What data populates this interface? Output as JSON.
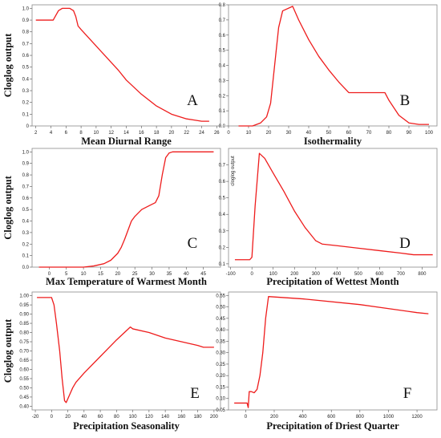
{
  "chart_data": [
    {
      "panel": "A",
      "type": "line",
      "xlabel": "Mean Diurnal Range",
      "ylabel": "Cloglog output",
      "xlim": [
        1.5,
        26.5
      ],
      "ylim": [
        0,
        1.03
      ],
      "xticks": [
        2,
        4,
        6,
        8,
        10,
        12,
        14,
        16,
        18,
        20,
        22,
        24,
        26
      ],
      "yticks": [
        0,
        0.1,
        0.2,
        0.3,
        0.4,
        0.5,
        0.6,
        0.7,
        0.8,
        0.9,
        1.0
      ],
      "ytick_labels": [
        "0",
        "0.1",
        "0.2",
        "0.3",
        "0.4",
        "0.5",
        "0.6",
        "0.7",
        "0.8",
        "0.9",
        "1.0"
      ],
      "series": [
        {
          "color": "#ee1c1c",
          "x": [
            2,
            4.3,
            5,
            5.5,
            6.5,
            7,
            7.3,
            7.6,
            8,
            9,
            10,
            11,
            12,
            13,
            14,
            16,
            18,
            20,
            22,
            23,
            24,
            25
          ],
          "y": [
            0.9,
            0.9,
            0.98,
            1.0,
            1.0,
            0.98,
            0.93,
            0.85,
            0.82,
            0.75,
            0.68,
            0.61,
            0.54,
            0.47,
            0.39,
            0.27,
            0.17,
            0.1,
            0.06,
            0.05,
            0.04,
            0.04
          ]
        }
      ]
    },
    {
      "panel": "B",
      "type": "line",
      "xlabel": "Isothermality",
      "ylabel": "",
      "xlim": [
        0,
        104
      ],
      "ylim": [
        0,
        0.8
      ],
      "xticks": [
        0,
        10,
        20,
        30,
        40,
        50,
        60,
        70,
        80,
        90,
        100
      ],
      "yticks": [
        0,
        0.1,
        0.2,
        0.3,
        0.4,
        0.5,
        0.6,
        0.7,
        0.8
      ],
      "ytick_labels": [
        "0.0",
        "0.1",
        "0.2",
        "0.3",
        "0.4",
        "0.5",
        "0.6",
        "0.7",
        "0.8"
      ],
      "series": [
        {
          "color": "#ee1c1c",
          "x": [
            5,
            12,
            16,
            19,
            21,
            23,
            25,
            27,
            32,
            35,
            40,
            45,
            50,
            55,
            60,
            65,
            70,
            75,
            78,
            80,
            85,
            90,
            95,
            100
          ],
          "y": [
            0.0,
            0.0,
            0.02,
            0.06,
            0.15,
            0.4,
            0.65,
            0.76,
            0.79,
            0.7,
            0.57,
            0.46,
            0.37,
            0.29,
            0.22,
            0.22,
            0.22,
            0.22,
            0.22,
            0.17,
            0.07,
            0.02,
            0.01,
            0.01
          ]
        }
      ]
    },
    {
      "panel": "C",
      "type": "line",
      "xlabel": "Max Temperature of Warmest Month",
      "ylabel": "Cloglog output",
      "xlim": [
        -5,
        50
      ],
      "ylim": [
        0,
        1.03
      ],
      "xticks": [
        0,
        5,
        10,
        15,
        20,
        25,
        30,
        35,
        40,
        45
      ],
      "yticks": [
        0,
        0.1,
        0.2,
        0.3,
        0.4,
        0.5,
        0.6,
        0.7,
        0.8,
        0.9,
        1.0
      ],
      "ytick_labels": [
        "0.0",
        "0.1",
        "0.2",
        "0.3",
        "0.4",
        "0.5",
        "0.6",
        "0.7",
        "0.8",
        "0.9",
        "1.0"
      ],
      "series": [
        {
          "color": "#ee1c1c",
          "x": [
            -3,
            5,
            10,
            13,
            16,
            18,
            20,
            21,
            22,
            23,
            24,
            25,
            27,
            29,
            31,
            32,
            33,
            34,
            35,
            36,
            40,
            45,
            48
          ],
          "y": [
            0.0,
            0.0,
            0.0,
            0.01,
            0.03,
            0.06,
            0.12,
            0.17,
            0.24,
            0.32,
            0.4,
            0.44,
            0.5,
            0.53,
            0.56,
            0.62,
            0.8,
            0.95,
            0.99,
            1.0,
            1.0,
            1.0,
            1.0
          ]
        }
      ]
    },
    {
      "panel": "D",
      "type": "line",
      "xlabel": "Precipitation of Wettest Month",
      "ylabel": "cloglog output",
      "xlim": [
        -110,
        870
      ],
      "ylim": [
        0.08,
        0.8
      ],
      "xticks": [
        -100,
        0,
        100,
        200,
        300,
        400,
        500,
        600,
        700,
        800
      ],
      "yticks": [
        0.1,
        0.2,
        0.3,
        0.4,
        0.5,
        0.6,
        0.7
      ],
      "ytick_labels": [
        "0.1",
        "0.2",
        "0.3",
        "0.4",
        "0.5",
        "0.6",
        "0.7"
      ],
      "series": [
        {
          "color": "#ee1c1c",
          "x": [
            -80,
            -10,
            0,
            15,
            35,
            60,
            100,
            150,
            200,
            250,
            300,
            330,
            400,
            500,
            600,
            700,
            760,
            800,
            850
          ],
          "y": [
            0.125,
            0.125,
            0.14,
            0.45,
            0.77,
            0.74,
            0.65,
            0.54,
            0.42,
            0.32,
            0.24,
            0.22,
            0.21,
            0.195,
            0.18,
            0.165,
            0.155,
            0.155,
            0.155
          ]
        }
      ]
    },
    {
      "panel": "E",
      "type": "line",
      "xlabel": "Precipitation Seasonality",
      "ylabel": "Cloglog output",
      "xlim": [
        -24,
        208
      ],
      "ylim": [
        0.38,
        1.02
      ],
      "xticks": [
        -20,
        0,
        20,
        40,
        60,
        80,
        100,
        120,
        140,
        160,
        180,
        200
      ],
      "yticks": [
        0.4,
        0.45,
        0.5,
        0.55,
        0.6,
        0.65,
        0.7,
        0.75,
        0.8,
        0.85,
        0.9,
        0.95,
        1.0
      ],
      "ytick_labels": [
        "0.40",
        "0.45",
        "0.50",
        "0.55",
        "0.60",
        "0.65",
        "0.70",
        "0.75",
        "0.80",
        "0.85",
        "0.90",
        "0.95",
        "1.00"
      ],
      "series": [
        {
          "color": "#ee1c1c",
          "x": [
            -18,
            0,
            3,
            6,
            10,
            13,
            16,
            18,
            22,
            26,
            30,
            40,
            60,
            80,
            97,
            100,
            120,
            140,
            160,
            180,
            187,
            200
          ],
          "y": [
            0.99,
            0.99,
            0.95,
            0.85,
            0.7,
            0.55,
            0.43,
            0.42,
            0.46,
            0.5,
            0.53,
            0.58,
            0.67,
            0.76,
            0.83,
            0.82,
            0.8,
            0.77,
            0.75,
            0.73,
            0.72,
            0.72
          ]
        }
      ]
    },
    {
      "panel": "F",
      "type": "line",
      "xlabel": "Precipitation of Driest Quarter",
      "ylabel": "",
      "xlim": [
        -120,
        1340
      ],
      "ylim": [
        0.05,
        0.565
      ],
      "xticks": [
        0,
        200,
        400,
        600,
        800,
        1000,
        1200
      ],
      "yticks": [
        0.05,
        0.1,
        0.15,
        0.2,
        0.25,
        0.3,
        0.35,
        0.4,
        0.45,
        0.5,
        0.55
      ],
      "ytick_labels": [
        "0.05",
        "0.10",
        "0.15",
        "0.20",
        "0.25",
        "0.30",
        "0.35",
        "0.40",
        "0.45",
        "0.50",
        "0.55"
      ],
      "series": [
        {
          "color": "#ee1c1c",
          "x": [
            -80,
            0,
            10,
            18,
            25,
            40,
            60,
            80,
            100,
            120,
            140,
            160,
            400,
            800,
            1200,
            1280
          ],
          "y": [
            0.08,
            0.08,
            0.08,
            0.06,
            0.13,
            0.13,
            0.125,
            0.14,
            0.2,
            0.3,
            0.45,
            0.545,
            0.535,
            0.51,
            0.475,
            0.47
          ]
        }
      ]
    }
  ],
  "panel_letters": [
    "A",
    "B",
    "C",
    "D",
    "E",
    "F"
  ]
}
